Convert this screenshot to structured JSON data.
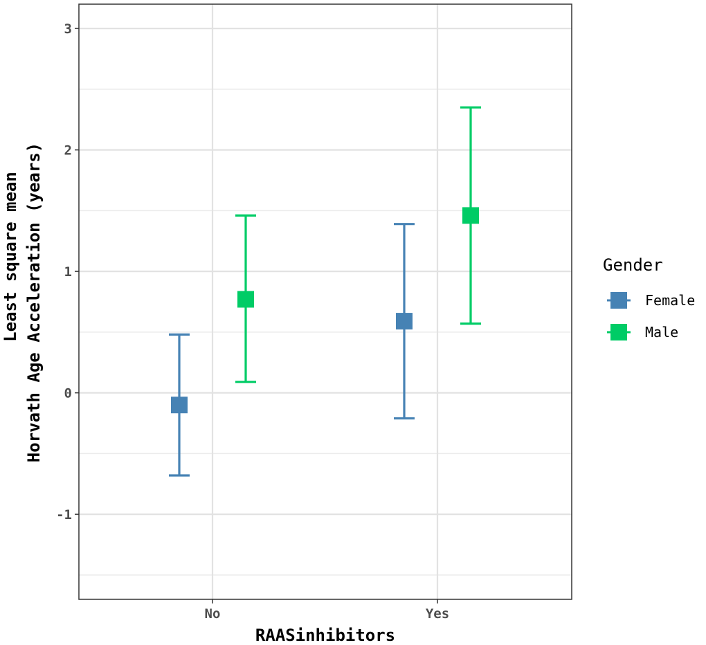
{
  "chart_data": {
    "type": "scatter",
    "subtype": "point-errorbar",
    "xlabel": "RAASinhibitors",
    "ylabel_lines": [
      "Least square mean",
      "Horvath Age Acceleration (years)"
    ],
    "categories": [
      "No",
      "Yes"
    ],
    "ylim": [
      -1.7,
      3.2
    ],
    "yticks": [
      -1,
      0,
      1,
      2,
      3
    ],
    "yticks_minor": [
      -1.5,
      -0.5,
      0.5,
      1.5,
      2.5
    ],
    "grid": true,
    "legend": {
      "title": "Gender",
      "position": "right"
    },
    "series": [
      {
        "name": "Female",
        "color": "#4682B4",
        "points": [
          {
            "category": "No",
            "mean": -0.1,
            "lower": -0.68,
            "upper": 0.48
          },
          {
            "category": "Yes",
            "mean": 0.59,
            "lower": -0.21,
            "upper": 1.39
          }
        ]
      },
      {
        "name": "Male",
        "color": "#00CC66",
        "points": [
          {
            "category": "No",
            "mean": 0.77,
            "lower": 0.09,
            "upper": 1.46
          },
          {
            "category": "Yes",
            "mean": 1.46,
            "lower": 0.57,
            "upper": 2.35
          }
        ]
      }
    ]
  }
}
